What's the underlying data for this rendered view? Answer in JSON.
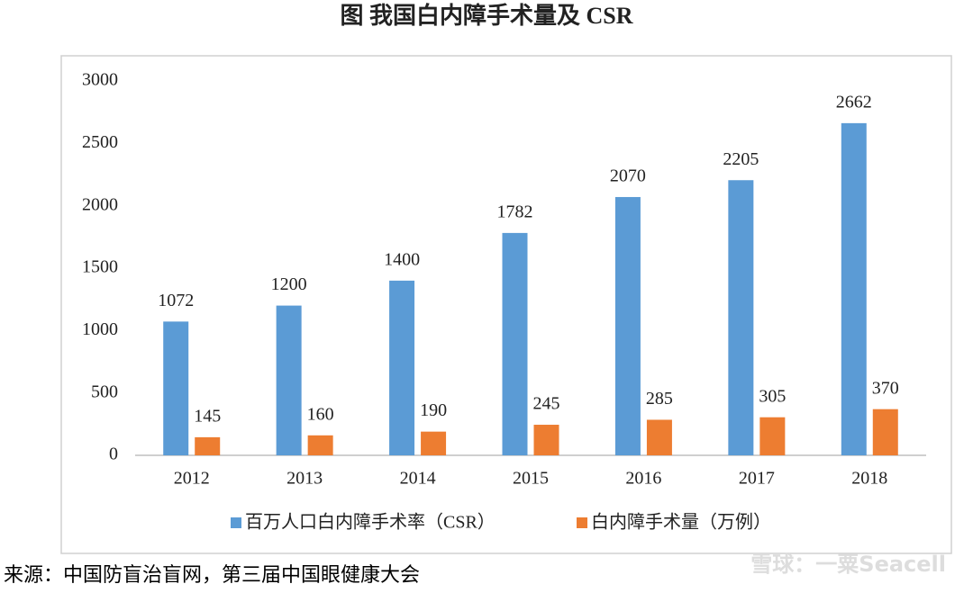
{
  "chart_data": {
    "type": "bar",
    "title": "图 我国白内障手术量及 CSR",
    "categories": [
      "2012",
      "2013",
      "2014",
      "2015",
      "2016",
      "2017",
      "2018"
    ],
    "series": [
      {
        "name": "百万人口白内障手术率（CSR）",
        "color": "#5b9bd5",
        "values": [
          1072,
          1200,
          1400,
          1782,
          2070,
          2205,
          2662
        ]
      },
      {
        "name": "白内障手术量（万例）",
        "color": "#ed7d31",
        "values": [
          145,
          160,
          190,
          245,
          285,
          305,
          370
        ]
      }
    ],
    "ylim": [
      0,
      3000
    ],
    "yticks": [
      0,
      500,
      1000,
      1500,
      2000,
      2500,
      3000
    ],
    "grid": false,
    "legend": "bottom"
  },
  "source": "来源：中国防盲治盲网，第三届中国眼健康大会",
  "watermark": "雪球：一粟Seacell"
}
